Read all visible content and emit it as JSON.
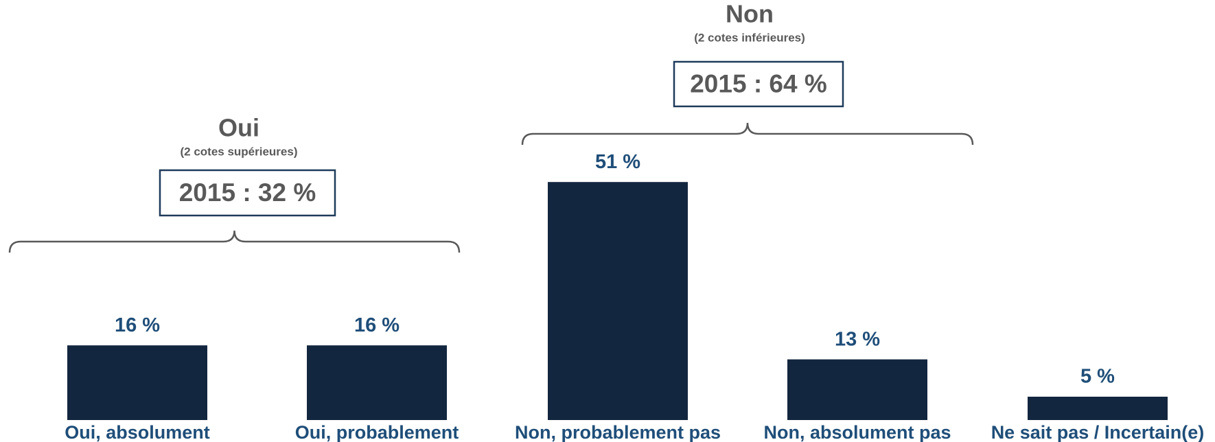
{
  "chart_data": {
    "type": "bar",
    "categories": [
      "Oui, absolument",
      "Oui, probablement",
      "Non, probablement pas",
      "Non, absolument pas",
      "Ne sait pas / Incertain(e)"
    ],
    "values": [
      16,
      16,
      51,
      13,
      5
    ],
    "value_labels": [
      "16 %",
      "16 %",
      "51 %",
      "13 %",
      "5 %"
    ],
    "color": "#13263f",
    "groups": [
      {
        "title": "Oui",
        "subtitle": "(2 cotes supérieures)",
        "summary": "2015 : 32 %"
      },
      {
        "title": "Non",
        "subtitle": "(2 cotes inférieures)",
        "summary": "2015 : 64 %"
      }
    ]
  }
}
